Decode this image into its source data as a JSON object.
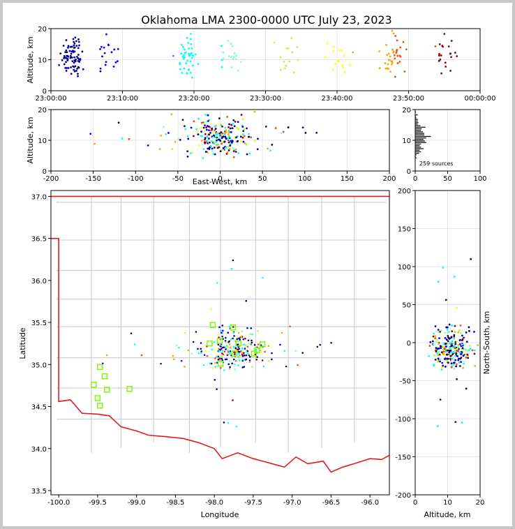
{
  "title": "Oklahoma LMA 2300-0000 UTC July 23, 2023",
  "source_count_label": "259 sources",
  "colors": {
    "state_border": "#e31a1c",
    "county_lines": "#c8c8c8",
    "station_marker": "#7cfc00",
    "time_gradient": [
      "#00008b",
      "#0000ff",
      "#1e90ff",
      "#00ffff",
      "#7fffd4",
      "#adff2f",
      "#ffff00",
      "#ffa500",
      "#ff4500",
      "#8b0000"
    ]
  },
  "chart_data": [
    {
      "type": "scatter",
      "panel": "altitude-vs-time",
      "ylabel": "Altitude, km",
      "xlim": [
        "23:00:00",
        "00:00:00"
      ],
      "ylim": [
        0,
        20
      ],
      "xticks": [
        "23:00:00",
        "23:10:00",
        "23:20:00",
        "23:30:00",
        "23:40:00",
        "23:50:00",
        "00:00:00"
      ],
      "yticks": [
        "0",
        "10",
        "20"
      ],
      "grid": true,
      "note": "points colored by time"
    },
    {
      "type": "scatter",
      "panel": "altitude-vs-east-west",
      "xlabel": "East-West, km",
      "ylabel": "Altitude, km",
      "xlim": [
        -200,
        200
      ],
      "ylim": [
        0,
        20
      ],
      "xticks": [
        "-200",
        "-150",
        "-100",
        "-50",
        "0",
        "50",
        "100",
        "150",
        "200"
      ],
      "yticks": [
        "0",
        "10",
        "20"
      ],
      "grid": true
    },
    {
      "type": "histogram",
      "panel": "altitude-source-count",
      "xlim": [
        0,
        100
      ],
      "ylim": [
        0,
        20
      ],
      "xticks": [
        "0",
        "50",
        "100"
      ],
      "yticks": [
        "0",
        "10",
        "20"
      ],
      "grid": true,
      "total_sources": 259
    },
    {
      "type": "scatter",
      "panel": "plan-view-map",
      "xlabel": "Longitude",
      "ylabel": "Latitude",
      "xlim": [
        -100.1,
        -95.75
      ],
      "ylim": [
        33.45,
        37.07
      ],
      "xticks": [
        "-100.0",
        "-99.5",
        "-99.0",
        "-98.5",
        "-98.0",
        "-97.5",
        "-97.0",
        "-96.5",
        "-96.0"
      ],
      "yticks": [
        "33.5",
        "34.0",
        "34.5",
        "35.0",
        "35.5",
        "36.0",
        "36.5",
        "37.0"
      ],
      "stations": [
        {
          "lon": -99.47,
          "lat": 34.97
        },
        {
          "lon": -99.41,
          "lat": 34.86
        },
        {
          "lon": -99.55,
          "lat": 34.76
        },
        {
          "lon": -99.38,
          "lat": 34.7
        },
        {
          "lon": -99.5,
          "lat": 34.6
        },
        {
          "lon": -99.47,
          "lat": 34.51
        },
        {
          "lon": -99.09,
          "lat": 34.71
        },
        {
          "lon": -98.02,
          "lat": 35.47
        },
        {
          "lon": -97.76,
          "lat": 35.44
        },
        {
          "lon": -98.06,
          "lat": 35.25
        },
        {
          "lon": -97.93,
          "lat": 35.28
        },
        {
          "lon": -97.69,
          "lat": 35.25
        },
        {
          "lon": -97.92,
          "lat": 35.01
        },
        {
          "lon": -97.74,
          "lat": 35.13
        },
        {
          "lon": -97.49,
          "lat": 35.13
        },
        {
          "lon": -97.45,
          "lat": 35.17
        },
        {
          "lon": -97.38,
          "lat": 35.24
        }
      ]
    },
    {
      "type": "scatter",
      "panel": "north-south-vs-altitude",
      "xlabel": "Altitude, km",
      "ylabel": "North-South, km",
      "xlim": [
        0,
        20
      ],
      "ylim": [
        -200,
        200
      ],
      "xticks": [
        "0",
        "10",
        "20"
      ],
      "yticks": [
        "-200",
        "-150",
        "-100",
        "-50",
        "0",
        "50",
        "100",
        "150",
        "200"
      ],
      "grid": true
    }
  ]
}
